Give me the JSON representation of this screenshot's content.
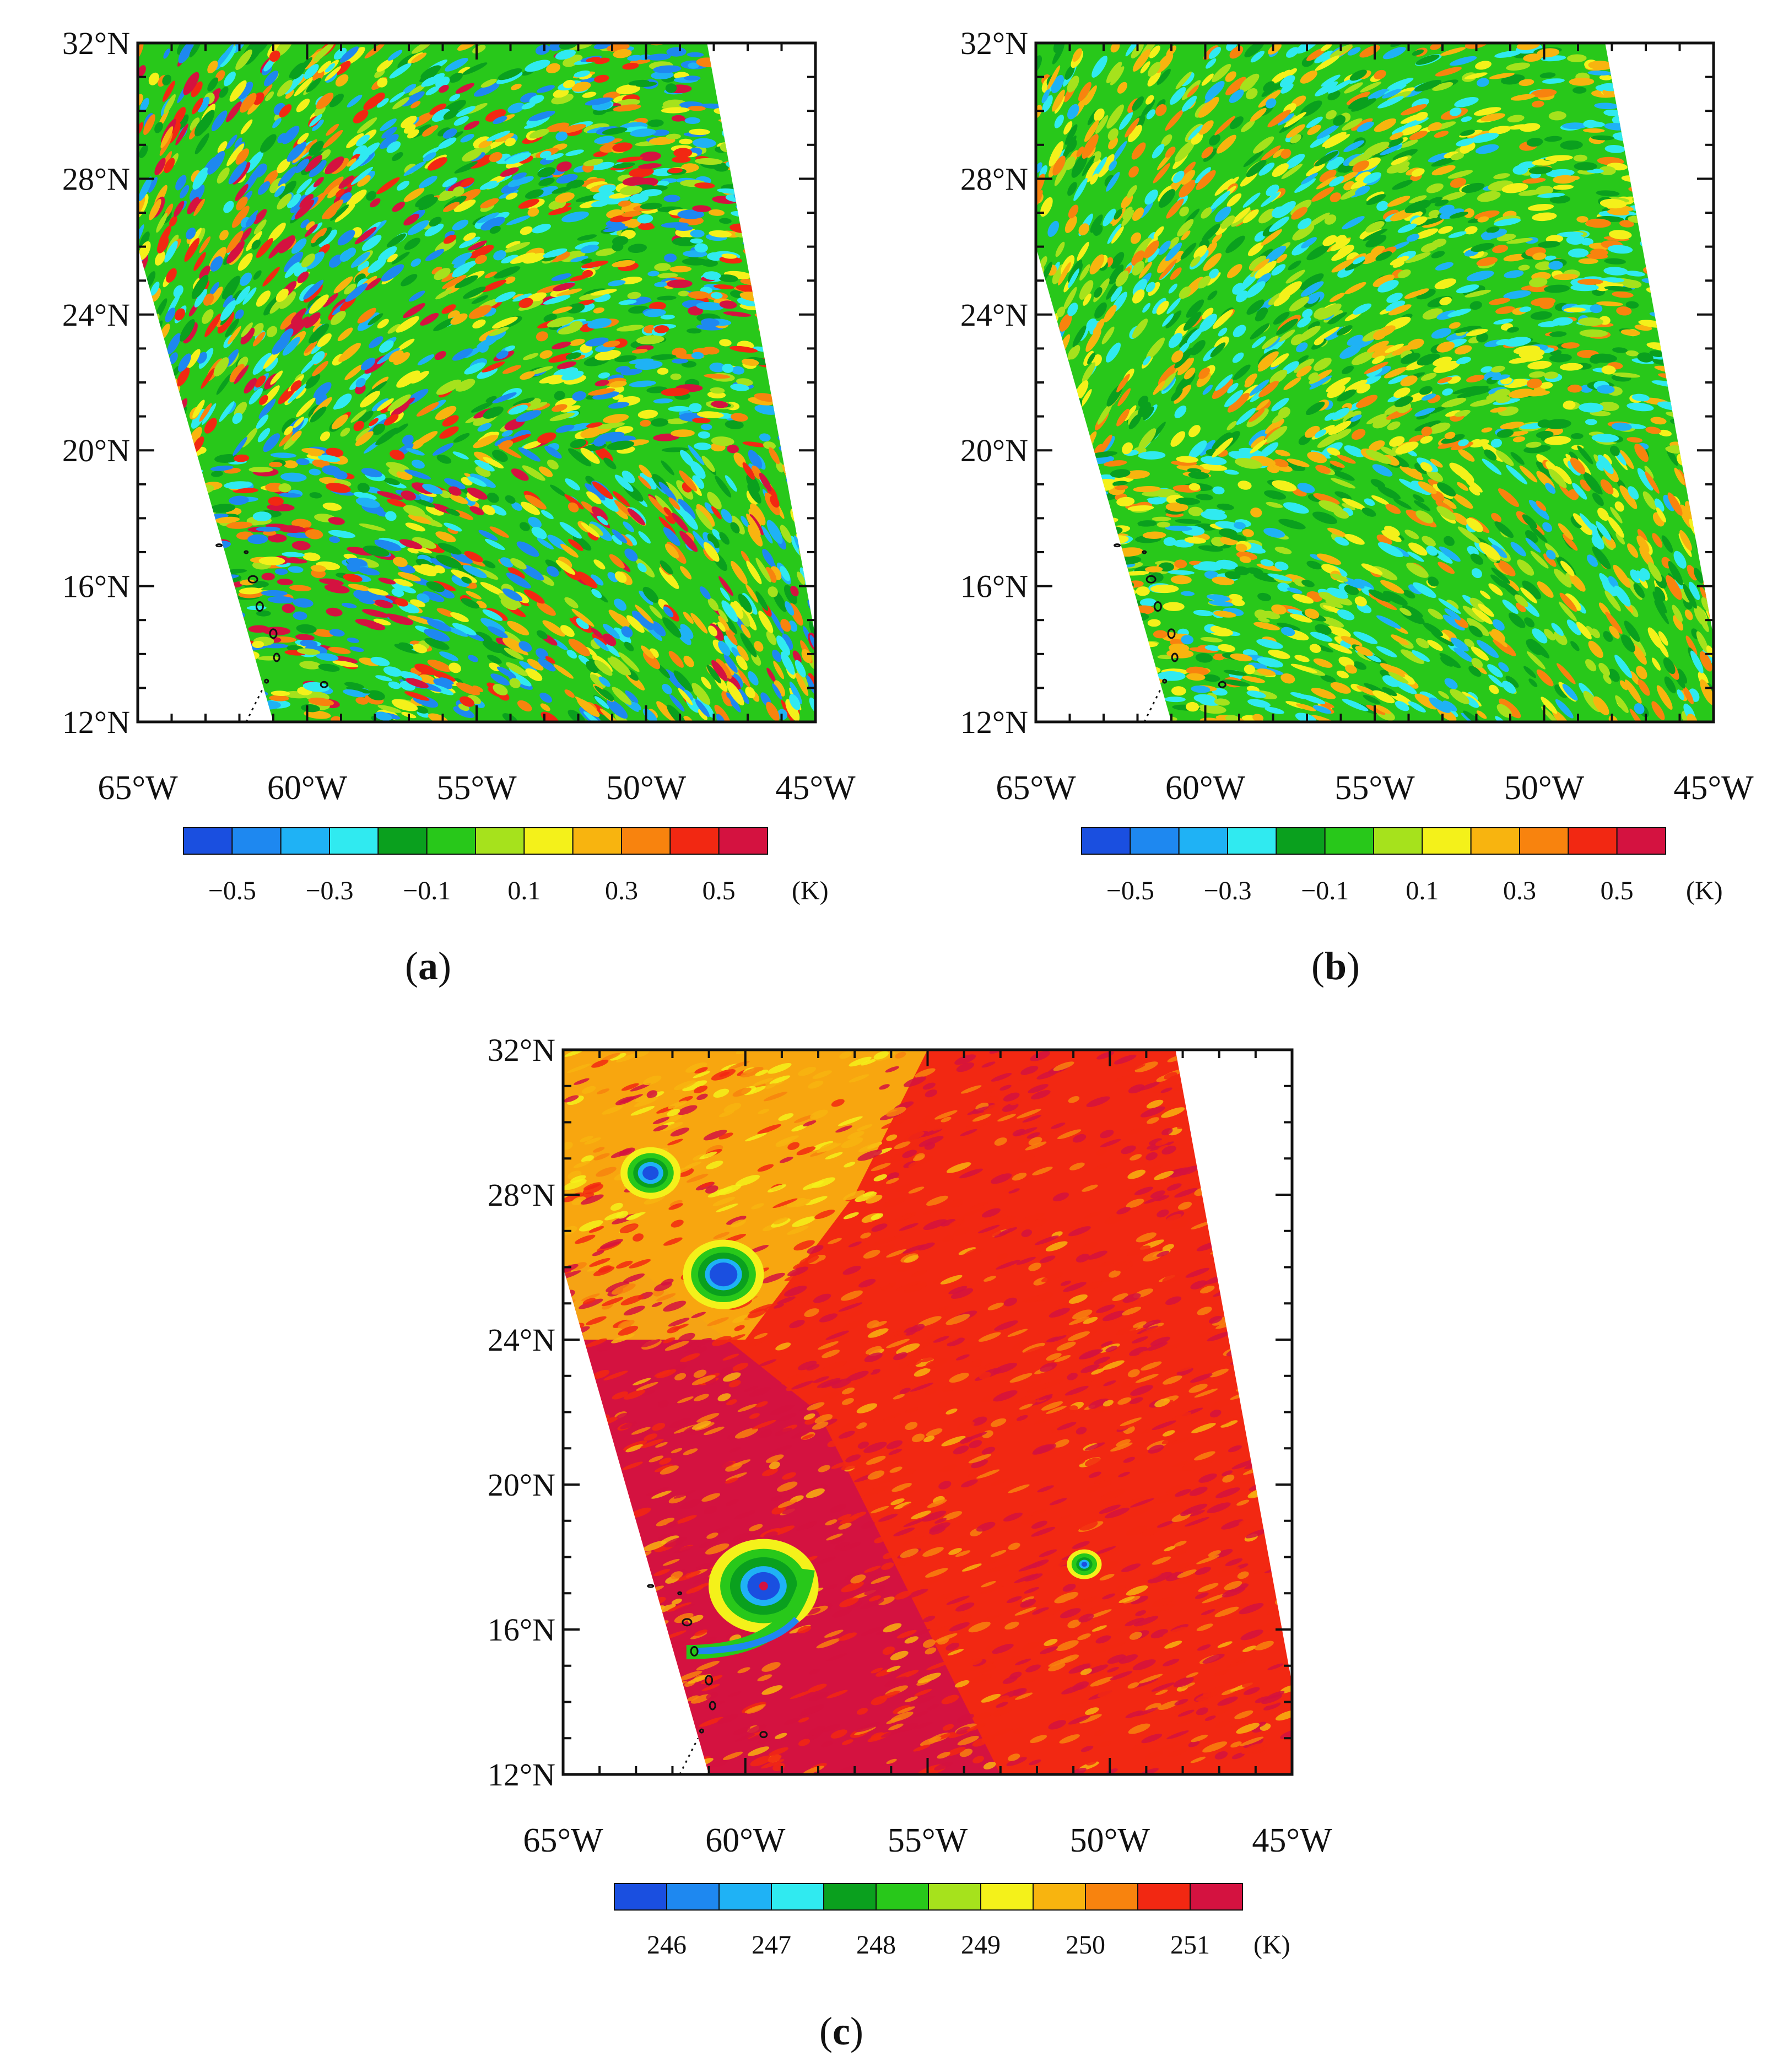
{
  "panels": [
    {
      "id": "a",
      "label_open": "(",
      "label_letter": "a",
      "label_close": ")",
      "lat_ticks": [
        "12°N",
        "16°N",
        "20°N",
        "24°N",
        "28°N",
        "32°N"
      ],
      "lon_ticks": [
        "65°W",
        "60°W",
        "55°W",
        "50°W",
        "45°W"
      ],
      "colorbar_labels": [
        "−0.5",
        "−0.3",
        "−0.1",
        "0.1",
        "0.3",
        "0.5"
      ],
      "unit": "(K)",
      "field": "residual",
      "palette": [
        "#1a4fe0",
        "#1e88f0",
        "#1fb2f5",
        "#30eaf0",
        "#0aa01e",
        "#28c81a",
        "#a6e21c",
        "#f4f11a",
        "#f8b40f",
        "#f8830e",
        "#f22812",
        "#d41240"
      ]
    },
    {
      "id": "b",
      "label_open": "(",
      "label_letter": "b",
      "label_close": ")",
      "lat_ticks": [
        "12°N",
        "16°N",
        "20°N",
        "24°N",
        "28°N",
        "32°N"
      ],
      "lon_ticks": [
        "65°W",
        "60°W",
        "55°W",
        "50°W",
        "45°W"
      ],
      "colorbar_labels": [
        "−0.5",
        "−0.3",
        "−0.1",
        "0.1",
        "0.3",
        "0.5"
      ],
      "unit": "(K)",
      "field": "residual",
      "palette": [
        "#1a4fe0",
        "#1e88f0",
        "#1fb2f5",
        "#30eaf0",
        "#0aa01e",
        "#28c81a",
        "#a6e21c",
        "#f4f11a",
        "#f8b40f",
        "#f8830e",
        "#f22812",
        "#d41240"
      ]
    },
    {
      "id": "c",
      "label_open": "(",
      "label_letter": "c",
      "label_close": ")",
      "lat_ticks": [
        "12°N",
        "16°N",
        "20°N",
        "24°N",
        "28°N",
        "32°N"
      ],
      "lon_ticks": [
        "65°W",
        "60°W",
        "55°W",
        "50°W",
        "45°W"
      ],
      "colorbar_labels": [
        "246",
        "247",
        "248",
        "249",
        "250",
        "251"
      ],
      "unit": "(K)",
      "field": "brightness_temperature",
      "palette": [
        "#1a4fe0",
        "#1e88f0",
        "#1fb2f5",
        "#30eaf0",
        "#0aa01e",
        "#28c81a",
        "#a6e21c",
        "#f4f11a",
        "#f8b40f",
        "#f8830e",
        "#f22812",
        "#d41240"
      ]
    }
  ],
  "map_extent": {
    "lon_min": -65,
    "lon_max": -45,
    "lat_min": 12,
    "lat_max": 32
  },
  "swath": {
    "west_edge": [
      [
        -61,
        12
      ],
      [
        -65,
        26
      ],
      [
        -65,
        32
      ]
    ],
    "east_edge": [
      [
        -48.2,
        32
      ],
      [
        -45,
        14.5
      ],
      [
        -45,
        12
      ]
    ]
  },
  "storm_centers": [
    {
      "lon": -59.5,
      "lat": 17.2,
      "label": "",
      "kind": "hurricane eye"
    },
    {
      "lon": -60.6,
      "lat": 25.8,
      "label": "",
      "kind": "cold cloud"
    },
    {
      "lon": -62.6,
      "lat": 28.6,
      "label": "",
      "kind": "cold cloud"
    },
    {
      "lon": -50.7,
      "lat": 17.8,
      "label": "",
      "kind": "convection"
    }
  ]
}
